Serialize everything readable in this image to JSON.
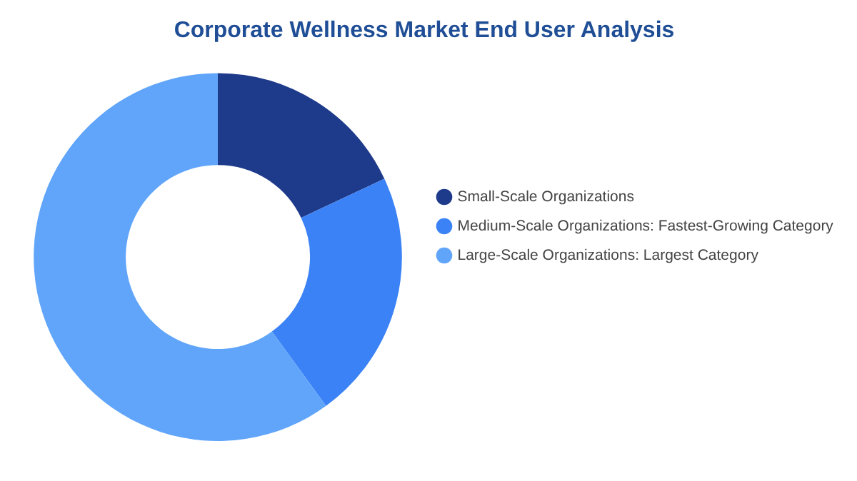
{
  "chart_data": {
    "type": "donut",
    "title": "Corporate Wellness Market End User Analysis",
    "categories": [
      "Small-Scale Organizations",
      "Medium-Scale Organizations: Fastest-Growing Category",
      "Large-Scale Organizations: Largest Category"
    ],
    "values": [
      18,
      22,
      60
    ],
    "colors": [
      "#1e3a8a",
      "#3b82f6",
      "#60a5fa"
    ],
    "legend": "right"
  }
}
